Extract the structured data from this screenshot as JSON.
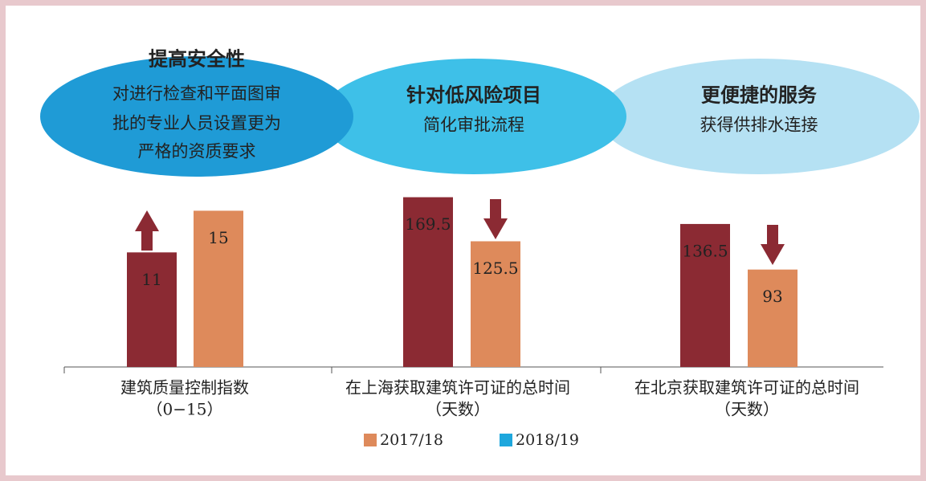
{
  "bubbles": [
    {
      "title": "提高安全性",
      "lines": [
        "对进行检查和平面图审",
        "批的专业人员设置更为",
        "严格的资质要求"
      ],
      "color": "#1f9bd6"
    },
    {
      "title": "针对低风险项目",
      "lines": [
        "简化审批流程"
      ],
      "color": "#3ec0e8"
    },
    {
      "title": "更便捷的服务",
      "lines": [
        "获得供排水连接"
      ],
      "color": "#b5e1f3"
    }
  ],
  "chart_data": [
    {
      "type": "bar",
      "label": [
        "建筑质量控制指数",
        "（0−15）"
      ],
      "values": [
        11,
        15
      ],
      "colors": [
        "#8b2a33",
        "#de8a5b"
      ],
      "ylim": [
        0,
        17.5
      ]
    },
    {
      "type": "bar",
      "label": [
        "在上海获取建筑许可证的总时间",
        "（天数）"
      ],
      "values": [
        169.5,
        125.5
      ],
      "colors": [
        "#8b2a33",
        "#de8a5b"
      ],
      "ylim": [
        0,
        182
      ]
    },
    {
      "type": "bar",
      "label": [
        "在北京获取建筑许可证的总时间",
        "（天数）"
      ],
      "values": [
        136.5,
        93
      ],
      "colors": [
        "#8b2a33",
        "#de8a5b"
      ],
      "ylim": [
        0,
        174
      ]
    }
  ],
  "legend": [
    {
      "name": "2017/18",
      "color": "#de8a5b"
    },
    {
      "name": "2018/19",
      "color": "#1ea7dd"
    }
  ]
}
